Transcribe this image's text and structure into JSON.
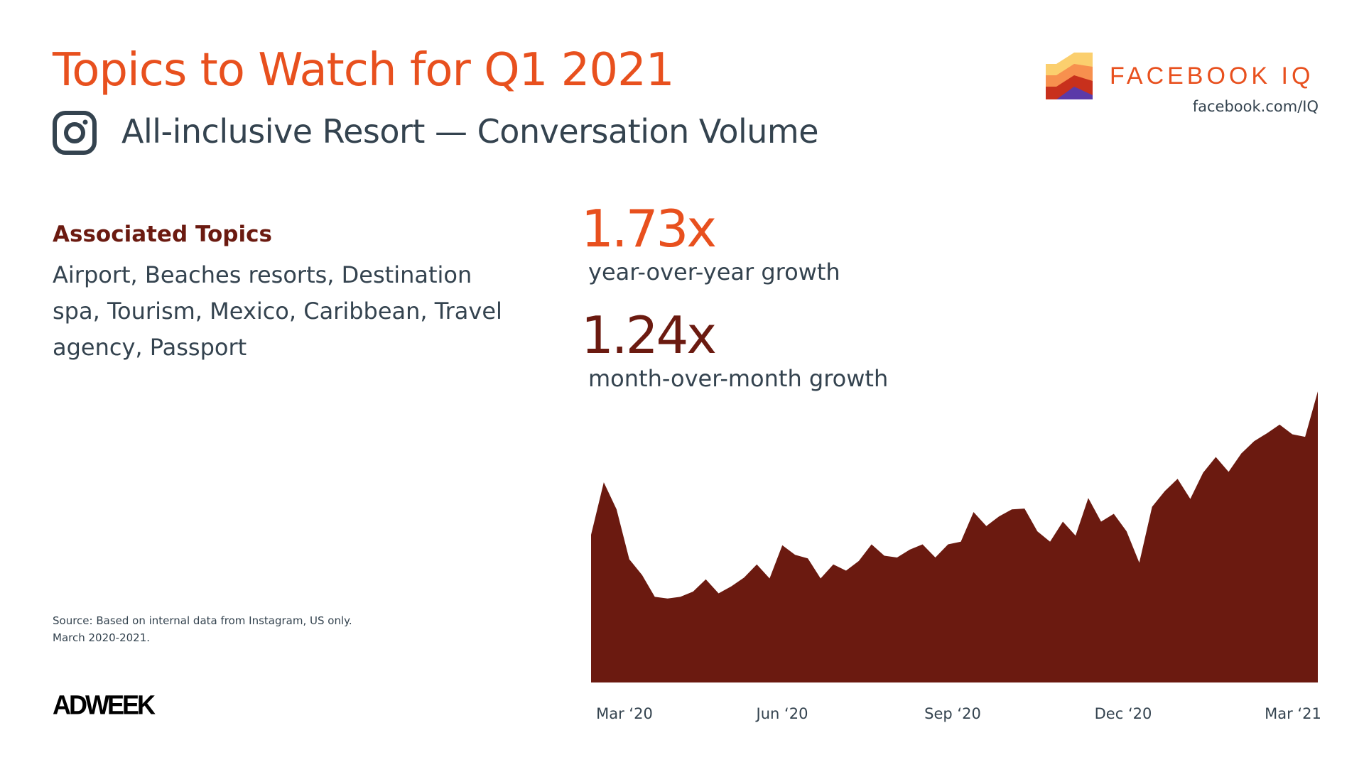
{
  "header": {
    "title": "Topics to Watch for Q1 2021",
    "subtitle": "All-inclusive Resort — Conversation Volume",
    "platform_icon": "instagram-icon"
  },
  "brand": {
    "name": "FACEBOOK IQ",
    "url": "facebook.com/IQ"
  },
  "associated": {
    "heading": "Associated Topics",
    "topics": "Airport, Beaches resorts, Destination spa, Tourism, Mexico, Caribbean, Travel agency, Passport"
  },
  "stats": {
    "yoy_value": "1.73x",
    "yoy_label": "year-over-year growth",
    "mom_value": "1.24x",
    "mom_label": "month-over-month growth"
  },
  "source": {
    "line1": "Source: Based on internal data from Instagram, US only.",
    "line2": "March 2020-2021."
  },
  "footer": {
    "publisher": "ADWEEK"
  },
  "colors": {
    "accent": "#e8501e",
    "dark": "#6b1a10",
    "text": "#34434f"
  },
  "chart_data": {
    "type": "area",
    "title": "All-inclusive Resort — Conversation Volume",
    "xlabel": "",
    "ylabel": "",
    "tick_labels": [
      "Mar ‘20",
      "Jun ‘20",
      "Sep ‘20",
      "Dec ‘20",
      "Mar ‘21"
    ],
    "grid": false,
    "values": [
      169,
      229,
      198,
      141,
      123,
      98,
      96,
      98,
      104,
      118,
      102,
      110,
      120,
      135,
      119,
      157,
      146,
      142,
      119,
      135,
      128,
      139,
      158,
      145,
      143,
      152,
      158,
      143,
      158,
      161,
      195,
      179,
      190,
      198,
      199,
      173,
      161,
      184,
      168,
      211,
      184,
      193,
      173,
      137,
      201,
      219,
      233,
      210,
      240,
      258,
      241,
      262,
      276,
      285,
      295,
      284,
      281,
      333
    ],
    "color": "#6b1a10"
  }
}
